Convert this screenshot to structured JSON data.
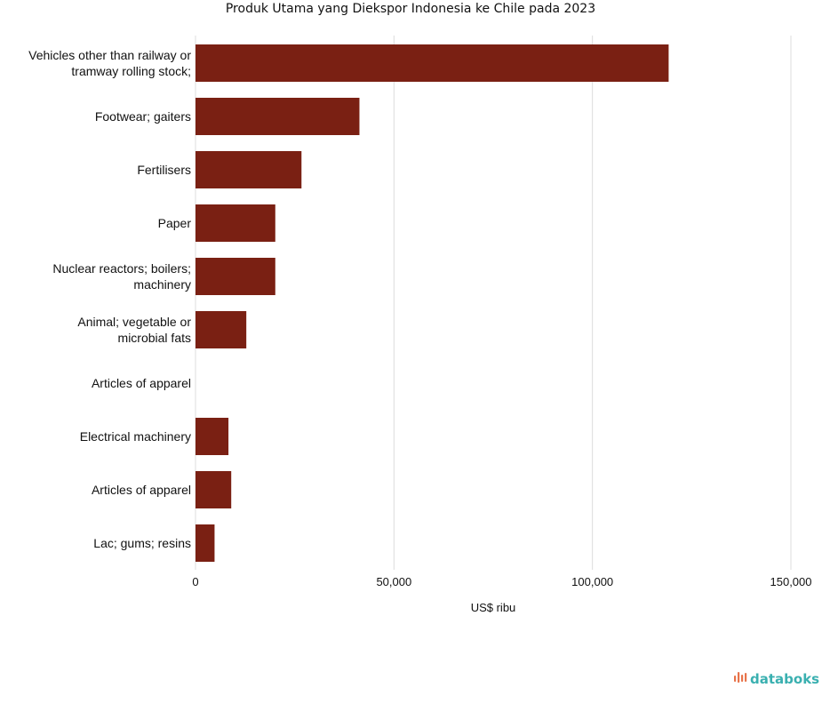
{
  "chart_data": {
    "type": "bar",
    "orientation": "horizontal",
    "title": "Produk Utama yang Diekspor Indonesia ke Chile pada 2023",
    "xlabel": "US$ ribu",
    "ylabel": "",
    "xlim": [
      0,
      150000
    ],
    "xticks": [
      0,
      50000,
      100000,
      150000
    ],
    "xtick_labels": [
      "0",
      "50,000",
      "100,000",
      "150,000"
    ],
    "grid": true,
    "legend": "none",
    "bar_color": "#7a2013",
    "categories": [
      [
        "Vehicles other than railway or",
        "tramway rolling stock;"
      ],
      [
        "Footwear; gaiters"
      ],
      [
        "Fertilisers"
      ],
      [
        "Paper"
      ],
      [
        "Nuclear reactors; boilers;",
        "machinery"
      ],
      [
        "Animal; vegetable or",
        "microbial fats"
      ],
      [
        "Articles of apparel"
      ],
      [
        "Electrical machinery"
      ],
      [
        "Articles of apparel"
      ],
      [
        "Lac; gums; resins"
      ]
    ],
    "values": [
      119200,
      41300,
      26700,
      20100,
      20100,
      12800,
      0,
      8300,
      9000,
      4800
    ]
  },
  "branding": {
    "logo_text": "databoks",
    "logo_color": "#3ab0b0",
    "logo_icon_color": "#e8734a"
  }
}
